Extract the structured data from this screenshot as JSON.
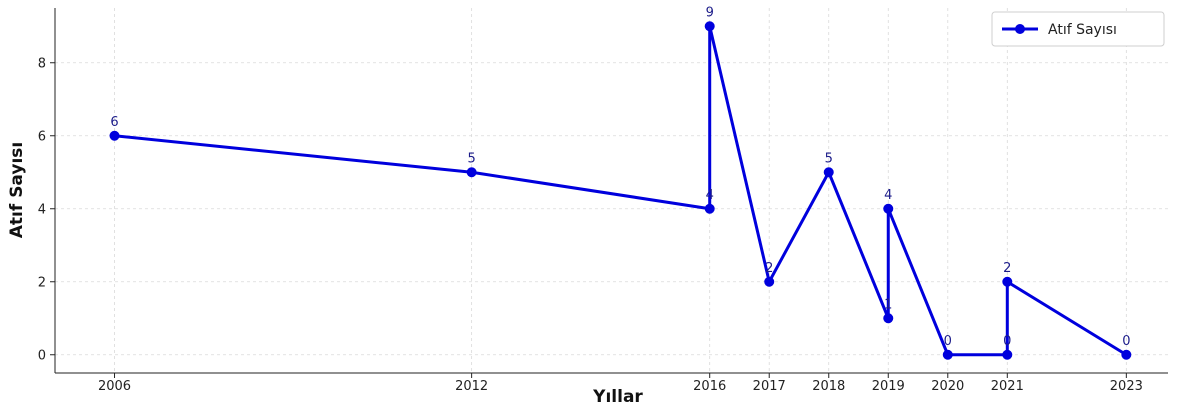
{
  "chart_data": {
    "type": "line",
    "title": "",
    "xlabel": "Yıllar",
    "ylabel": "Atıf Sayısı",
    "x_ticks": [
      "2006",
      "2012",
      "2016",
      "2017",
      "2018",
      "2019",
      "2020",
      "2021",
      "2023"
    ],
    "y_ticks": [
      "0",
      "2",
      "4",
      "6",
      "8"
    ],
    "ylim": [
      -0.5,
      9.5
    ],
    "xlim": [
      2005.0,
      2023.7
    ],
    "grid": true,
    "legend_position": "top-right",
    "series": [
      {
        "name": "Atıf Sayısı",
        "color": "#0000dd",
        "points": [
          {
            "x": 2006,
            "y": 6,
            "label": "6"
          },
          {
            "x": 2012,
            "y": 5,
            "label": "5"
          },
          {
            "x": 2016,
            "y": 4,
            "label": "4"
          },
          {
            "x": 2016,
            "y": 9,
            "label": "9"
          },
          {
            "x": 2017,
            "y": 2,
            "label": "2"
          },
          {
            "x": 2018,
            "y": 5,
            "label": "5"
          },
          {
            "x": 2019,
            "y": 1,
            "label": "1"
          },
          {
            "x": 2019,
            "y": 4,
            "label": "4"
          },
          {
            "x": 2020,
            "y": 0,
            "label": "0"
          },
          {
            "x": 2021,
            "y": 0,
            "label": "0"
          },
          {
            "x": 2021,
            "y": 2,
            "label": "2"
          },
          {
            "x": 2023,
            "y": 0,
            "label": "0"
          }
        ]
      }
    ]
  }
}
